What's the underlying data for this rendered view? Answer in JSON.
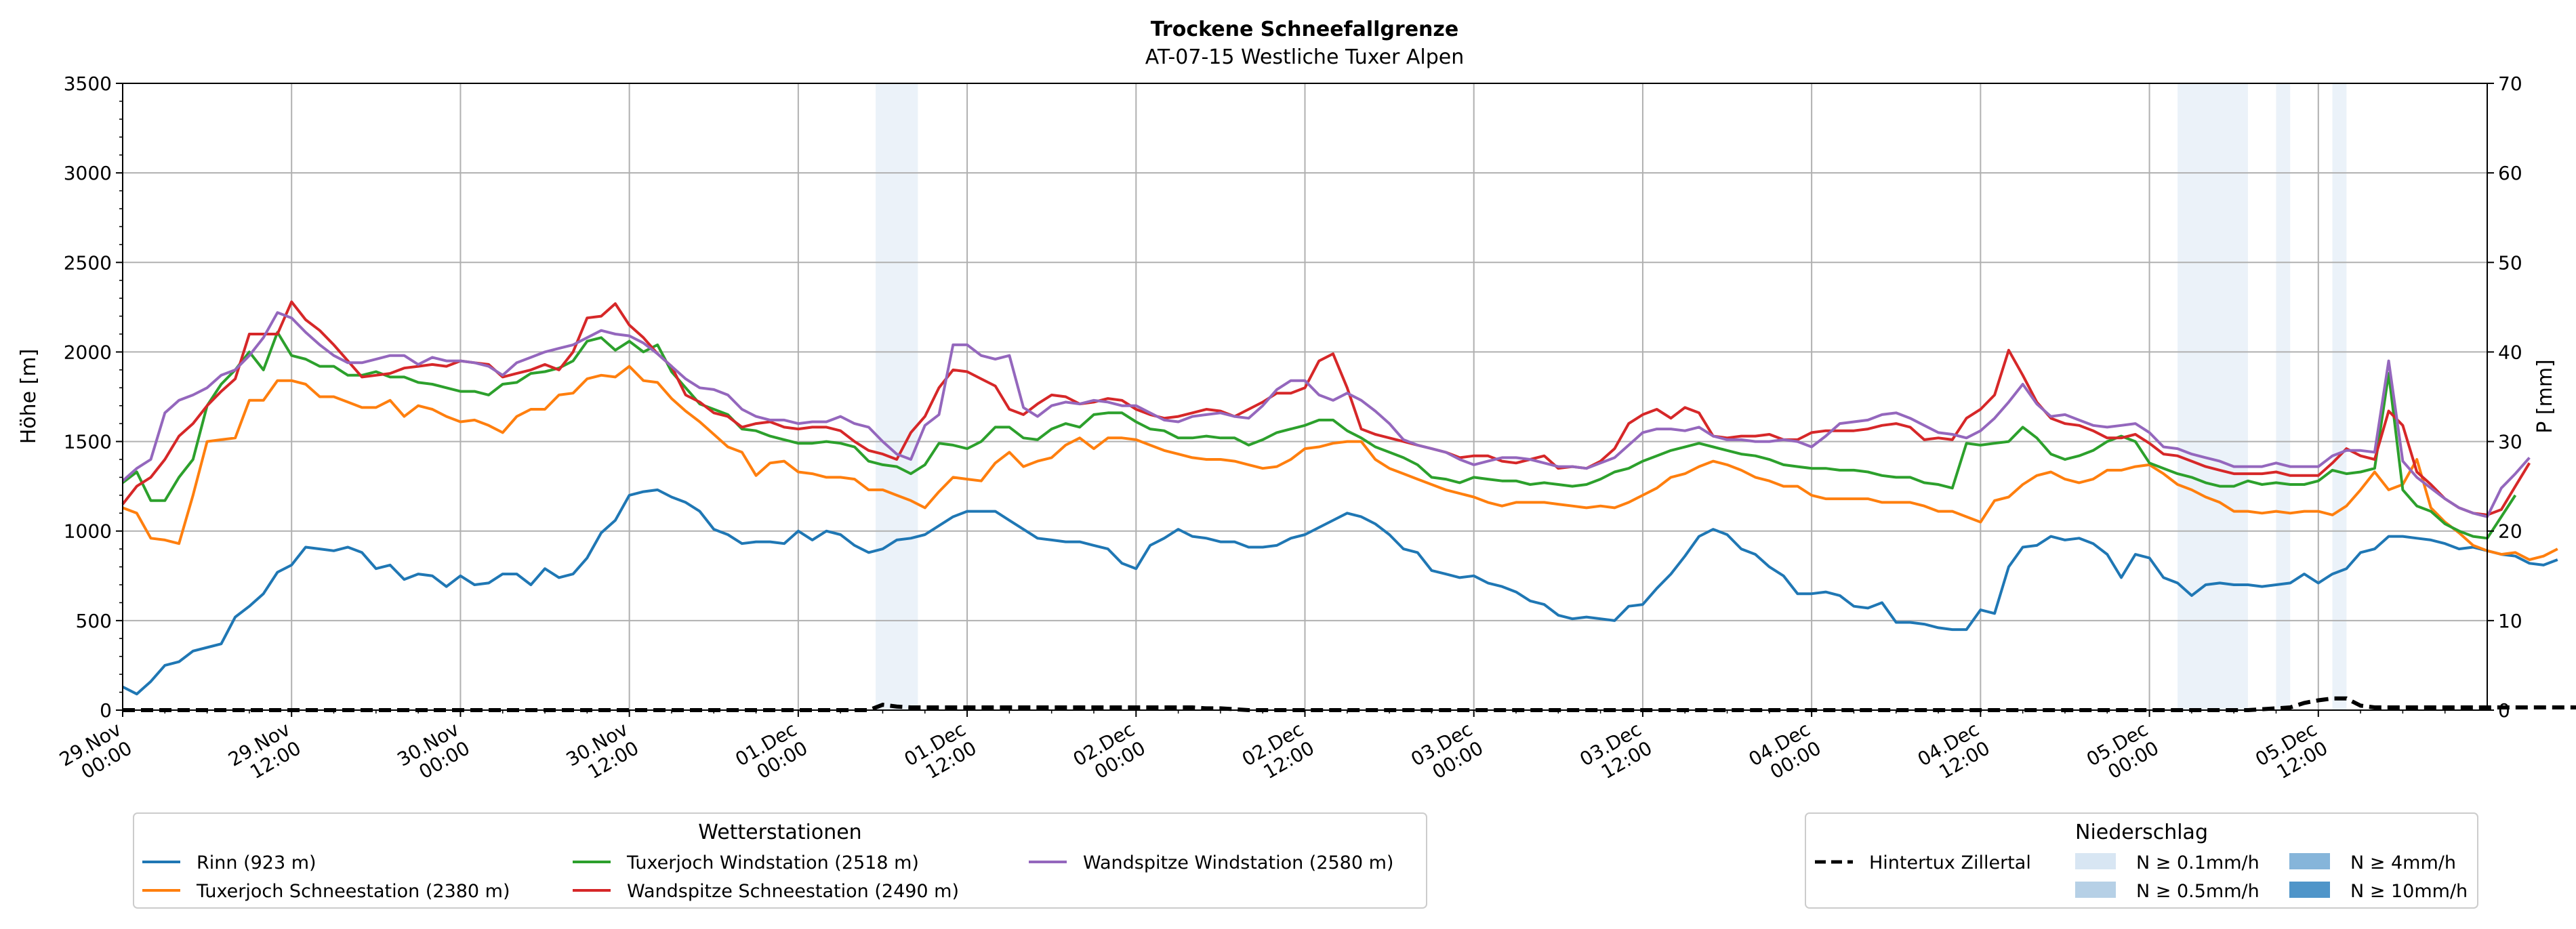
{
  "chart_data": {
    "type": "line",
    "title": "Trockene Schneefallgrenze",
    "subtitle": "AT-07-15 Westliche Tuxer Alpen",
    "ylabel": "Höhe [m]",
    "y2label": "P [mm]",
    "ylim": [
      0,
      3500
    ],
    "y2lim": [
      0,
      70
    ],
    "xlim": [
      0,
      168
    ],
    "x_step_hours": 1,
    "yticks": [
      "0",
      "500",
      "1000",
      "1500",
      "2000",
      "2500",
      "3000",
      "3500"
    ],
    "y2ticks": [
      "0",
      "10",
      "20",
      "30",
      "40",
      "50",
      "60",
      "70"
    ],
    "xticks": [
      {
        "label1": "29.Nov",
        "label2": "00:00"
      },
      {
        "label1": "29.Nov",
        "label2": "12:00"
      },
      {
        "label1": "30.Nov",
        "label2": "00:00"
      },
      {
        "label1": "30.Nov",
        "label2": "12:00"
      },
      {
        "label1": "01.Dec",
        "label2": "00:00"
      },
      {
        "label1": "01.Dec",
        "label2": "12:00"
      },
      {
        "label1": "02.Dec",
        "label2": "00:00"
      },
      {
        "label1": "02.Dec",
        "label2": "12:00"
      },
      {
        "label1": "03.Dec",
        "label2": "00:00"
      },
      {
        "label1": "03.Dec",
        "label2": "12:00"
      },
      {
        "label1": "04.Dec",
        "label2": "00:00"
      },
      {
        "label1": "04.Dec",
        "label2": "12:00"
      },
      {
        "label1": "05.Dec",
        "label2": "00:00"
      },
      {
        "label1": "05.Dec",
        "label2": "12:00"
      }
    ],
    "precip_bands": [
      {
        "start": 53.5,
        "end": 56.5,
        "level": "N ≥ 0.1mm/h"
      },
      {
        "start": 146.0,
        "end": 151.0,
        "level": "N ≥ 0.1mm/h"
      },
      {
        "start": 153.0,
        "end": 154.0,
        "level": "N ≥ 0.1mm/h"
      },
      {
        "start": 157.0,
        "end": 158.0,
        "level": "N ≥ 0.1mm/h"
      }
    ],
    "series": [
      {
        "name": "Rinn (923 m)",
        "color": "#1f77b4",
        "values": [
          130,
          90,
          160,
          250,
          270,
          330,
          350,
          370,
          520,
          580,
          650,
          770,
          810,
          910,
          900,
          890,
          910,
          880,
          790,
          810,
          730,
          760,
          750,
          690,
          750,
          700,
          710,
          760,
          760,
          700,
          790,
          740,
          760,
          850,
          990,
          1060,
          1200,
          1220,
          1230,
          1190,
          1160,
          1110,
          1010,
          980,
          930,
          940,
          940,
          930,
          1000,
          950,
          1000,
          980,
          920,
          880,
          900,
          950,
          960,
          980,
          1030,
          1080,
          1110,
          1110,
          1110,
          1060,
          1010,
          960,
          950,
          940,
          940,
          920,
          900,
          820,
          790,
          920,
          960,
          1010,
          970,
          960,
          940,
          940,
          910,
          910,
          920,
          960,
          980,
          1020,
          1060,
          1100,
          1080,
          1040,
          980,
          900,
          880,
          780,
          760,
          740,
          750,
          710,
          690,
          660,
          610,
          590,
          530,
          510,
          520,
          510,
          500,
          580,
          590,
          680,
          760,
          860,
          970,
          1010,
          980,
          900,
          870,
          800,
          750,
          650,
          650,
          660,
          640,
          580,
          570,
          600,
          490,
          490,
          480,
          460,
          450,
          450,
          560,
          540,
          800,
          910,
          920,
          970,
          950,
          960,
          930,
          870,
          740,
          870,
          850,
          740,
          710,
          640,
          700,
          710,
          700,
          700,
          690,
          700,
          710,
          760,
          710,
          760,
          790,
          880,
          900,
          970,
          970,
          960,
          950,
          930,
          900,
          910,
          890,
          870,
          860,
          820,
          810,
          840
        ]
      },
      {
        "name": "Tuxerjoch Schneestation (2380 m)",
        "color": "#ff7f0e",
        "values": [
          1130,
          1100,
          960,
          950,
          930,
          1200,
          1500,
          1510,
          1520,
          1730,
          1730,
          1840,
          1840,
          1820,
          1750,
          1750,
          1720,
          1690,
          1690,
          1730,
          1640,
          1700,
          1680,
          1640,
          1610,
          1620,
          1590,
          1550,
          1640,
          1680,
          1680,
          1760,
          1770,
          1850,
          1870,
          1860,
          1920,
          1840,
          1830,
          1740,
          1670,
          1610,
          1540,
          1470,
          1440,
          1310,
          1380,
          1390,
          1330,
          1320,
          1300,
          1300,
          1290,
          1230,
          1230,
          1200,
          1170,
          1130,
          1220,
          1300,
          1290,
          1280,
          1380,
          1440,
          1360,
          1390,
          1410,
          1480,
          1520,
          1460,
          1520,
          1520,
          1510,
          1480,
          1450,
          1430,
          1410,
          1400,
          1400,
          1390,
          1370,
          1350,
          1360,
          1400,
          1460,
          1470,
          1490,
          1500,
          1500,
          1400,
          1350,
          1320,
          1290,
          1260,
          1230,
          1210,
          1190,
          1160,
          1140,
          1160,
          1160,
          1160,
          1150,
          1140,
          1130,
          1140,
          1130,
          1160,
          1200,
          1240,
          1300,
          1320,
          1360,
          1390,
          1370,
          1340,
          1300,
          1280,
          1250,
          1250,
          1200,
          1180,
          1180,
          1180,
          1180,
          1160,
          1160,
          1160,
          1140,
          1110,
          1110,
          1080,
          1050,
          1170,
          1190,
          1260,
          1310,
          1330,
          1290,
          1270,
          1290,
          1340,
          1340,
          1360,
          1370,
          1320,
          1260,
          1230,
          1190,
          1160,
          1110,
          1110,
          1100,
          1110,
          1100,
          1110,
          1110,
          1090,
          1140,
          1230,
          1330,
          1230,
          1260,
          1400,
          1130,
          1050,
          990,
          920,
          890,
          870,
          880,
          840,
          860,
          900
        ]
      },
      {
        "name": "Tuxerjoch Windstation (2518 m)",
        "color": "#2ca02c",
        "values": [
          1270,
          1330,
          1170,
          1170,
          1300,
          1400,
          1700,
          1820,
          1900,
          2000,
          1900,
          2110,
          1980,
          1960,
          1920,
          1920,
          1870,
          1870,
          1890,
          1860,
          1860,
          1830,
          1820,
          1800,
          1780,
          1780,
          1760,
          1820,
          1830,
          1880,
          1890,
          1910,
          1950,
          2060,
          2080,
          2010,
          2060,
          2000,
          2040,
          1890,
          1800,
          1710,
          1680,
          1650,
          1570,
          1560,
          1530,
          1510,
          1490,
          1490,
          1500,
          1490,
          1470,
          1390,
          1370,
          1360,
          1320,
          1370,
          1490,
          1480,
          1460,
          1500,
          1580,
          1580,
          1520,
          1510,
          1570,
          1600,
          1580,
          1650,
          1660,
          1660,
          1610,
          1570,
          1560,
          1520,
          1520,
          1530,
          1520,
          1520,
          1480,
          1510,
          1550,
          1570,
          1590,
          1620,
          1620,
          1560,
          1520,
          1470,
          1440,
          1410,
          1370,
          1300,
          1290,
          1270,
          1300,
          1290,
          1280,
          1280,
          1260,
          1270,
          1260,
          1250,
          1260,
          1290,
          1330,
          1350,
          1390,
          1420,
          1450,
          1470,
          1490,
          1470,
          1450,
          1430,
          1420,
          1400,
          1370,
          1360,
          1350,
          1350,
          1340,
          1340,
          1330,
          1310,
          1300,
          1300,
          1270,
          1260,
          1240,
          1490,
          1480,
          1490,
          1500,
          1580,
          1520,
          1430,
          1400,
          1420,
          1450,
          1500,
          1530,
          1500,
          1380,
          1350,
          1320,
          1300,
          1270,
          1250,
          1250,
          1280,
          1260,
          1270,
          1260,
          1260,
          1280,
          1340,
          1320,
          1330,
          1350,
          1880,
          1230,
          1140,
          1110,
          1040,
          1000,
          970,
          960,
          1080,
          1200
        ]
      },
      {
        "name": "Wandspitze Schneestation (2490 m)",
        "color": "#d62728",
        "values": [
          1150,
          1250,
          1300,
          1400,
          1530,
          1600,
          1700,
          1780,
          1850,
          2100,
          2100,
          2100,
          2280,
          2180,
          2120,
          2040,
          1950,
          1860,
          1870,
          1880,
          1910,
          1920,
          1930,
          1920,
          1950,
          1940,
          1930,
          1860,
          1880,
          1900,
          1930,
          1900,
          2000,
          2190,
          2200,
          2270,
          2150,
          2080,
          1990,
          1920,
          1760,
          1720,
          1660,
          1640,
          1580,
          1600,
          1610,
          1580,
          1570,
          1580,
          1580,
          1560,
          1500,
          1450,
          1430,
          1400,
          1550,
          1640,
          1800,
          1900,
          1890,
          1850,
          1810,
          1680,
          1650,
          1710,
          1760,
          1750,
          1710,
          1720,
          1740,
          1730,
          1680,
          1650,
          1630,
          1640,
          1660,
          1680,
          1670,
          1640,
          1680,
          1720,
          1770,
          1770,
          1800,
          1950,
          1990,
          1800,
          1570,
          1540,
          1520,
          1500,
          1480,
          1460,
          1440,
          1410,
          1420,
          1420,
          1390,
          1380,
          1400,
          1420,
          1350,
          1360,
          1350,
          1390,
          1460,
          1600,
          1650,
          1680,
          1630,
          1690,
          1660,
          1530,
          1520,
          1530,
          1530,
          1540,
          1510,
          1510,
          1550,
          1560,
          1560,
          1560,
          1570,
          1590,
          1600,
          1580,
          1510,
          1520,
          1510,
          1630,
          1680,
          1760,
          2010,
          1870,
          1720,
          1630,
          1600,
          1590,
          1560,
          1520,
          1520,
          1540,
          1490,
          1430,
          1420,
          1390,
          1360,
          1340,
          1320,
          1320,
          1320,
          1330,
          1310,
          1310,
          1310,
          1380,
          1460,
          1420,
          1400,
          1670,
          1590,
          1330,
          1260,
          1180,
          1130,
          1100,
          1090,
          1120,
          1250,
          1380
        ]
      },
      {
        "name": "Wandspitze Windstation (2580 m)",
        "color": "#9467bd",
        "values": [
          1280,
          1350,
          1400,
          1660,
          1730,
          1760,
          1800,
          1870,
          1900,
          1980,
          2080,
          2220,
          2190,
          2110,
          2040,
          1980,
          1940,
          1940,
          1960,
          1980,
          1980,
          1930,
          1970,
          1950,
          1950,
          1940,
          1920,
          1870,
          1940,
          1970,
          2000,
          2020,
          2040,
          2080,
          2120,
          2100,
          2090,
          2050,
          1990,
          1920,
          1850,
          1800,
          1790,
          1760,
          1680,
          1640,
          1620,
          1620,
          1600,
          1610,
          1610,
          1640,
          1600,
          1580,
          1500,
          1430,
          1400,
          1590,
          1650,
          2040,
          2040,
          1980,
          1960,
          1980,
          1690,
          1640,
          1700,
          1720,
          1710,
          1730,
          1720,
          1700,
          1700,
          1660,
          1620,
          1610,
          1640,
          1650,
          1660,
          1640,
          1630,
          1700,
          1790,
          1840,
          1840,
          1760,
          1730,
          1770,
          1730,
          1670,
          1600,
          1510,
          1480,
          1460,
          1440,
          1400,
          1370,
          1390,
          1410,
          1410,
          1400,
          1380,
          1360,
          1360,
          1350,
          1380,
          1410,
          1480,
          1550,
          1570,
          1570,
          1560,
          1580,
          1530,
          1510,
          1510,
          1500,
          1500,
          1510,
          1500,
          1470,
          1530,
          1600,
          1610,
          1620,
          1650,
          1660,
          1630,
          1590,
          1550,
          1540,
          1520,
          1560,
          1630,
          1720,
          1820,
          1710,
          1640,
          1650,
          1620,
          1590,
          1580,
          1590,
          1600,
          1550,
          1470,
          1460,
          1430,
          1410,
          1390,
          1360,
          1360,
          1360,
          1380,
          1360,
          1360,
          1360,
          1420,
          1450,
          1450,
          1440,
          1950,
          1390,
          1300,
          1240,
          1180,
          1130,
          1100,
          1080,
          1240,
          1320,
          1410
        ]
      }
    ],
    "reference_series": {
      "name": "Hintertux Zillertal",
      "style": "dashed",
      "color": "#000000",
      "values": [
        0,
        0,
        0,
        0,
        0,
        0,
        0,
        0,
        0,
        0,
        0,
        0,
        0,
        0,
        0,
        0,
        0,
        0,
        0,
        0,
        0,
        0,
        0,
        0,
        0,
        0,
        0,
        0,
        0,
        0,
        0,
        0,
        0,
        0,
        0,
        0,
        0,
        0,
        0,
        0,
        0,
        0,
        0,
        0,
        0,
        0,
        0,
        0,
        0,
        0,
        0,
        0,
        0,
        0,
        0.6,
        0.4,
        0.3,
        0.3,
        0.3,
        0.3,
        0.3,
        0.3,
        0.3,
        0.3,
        0.3,
        0.3,
        0.3,
        0.3,
        0.3,
        0.3,
        0.3,
        0.3,
        0.3,
        0.3,
        0.3,
        0.3,
        0.3,
        0.2,
        0.2,
        0.1,
        0,
        0,
        0,
        0,
        0,
        0,
        0,
        0,
        0,
        0,
        0,
        0,
        0,
        0,
        0,
        0,
        0,
        0,
        0,
        0,
        0,
        0,
        0,
        0,
        0,
        0,
        0,
        0,
        0,
        0,
        0,
        0,
        0,
        0,
        0,
        0,
        0,
        0,
        0,
        0,
        0,
        0,
        0,
        0,
        0,
        0,
        0,
        0,
        0,
        0,
        0,
        0,
        0,
        0,
        0,
        0,
        0,
        0,
        0,
        0,
        0,
        0,
        0,
        0,
        0,
        0,
        0,
        0,
        0,
        0,
        0,
        0,
        0.1,
        0.2,
        0.3,
        0.8,
        1.1,
        1.3,
        1.3,
        0.5,
        0.3,
        0.3,
        0.3,
        0.3,
        0.3,
        0.3,
        0.3,
        0.3,
        0.3,
        0.3,
        0.3,
        0.3,
        0.3,
        0.3,
        0.3,
        0.3
      ]
    }
  },
  "legend_stations": {
    "title": "Wetterstationen",
    "entries": [
      "Rinn (923 m)",
      "Tuxerjoch Schneestation (2380 m)",
      "Tuxerjoch Windstation (2518 m)",
      "Wandspitze Schneestation (2490 m)",
      "Wandspitze Windstation (2580 m)"
    ]
  },
  "legend_precip": {
    "title": "Niederschlag",
    "line_label": "Hintertux Zillertal",
    "entries": [
      {
        "label": "N ≥ 0.1mm/h",
        "color": "#d8e6f3"
      },
      {
        "label": "N ≥ 0.5mm/h",
        "color": "#b6d0e6"
      },
      {
        "label": "N ≥ 4mm/h",
        "color": "#86b5da"
      },
      {
        "label": "N ≥ 10mm/h",
        "color": "#4f95c9"
      }
    ]
  }
}
